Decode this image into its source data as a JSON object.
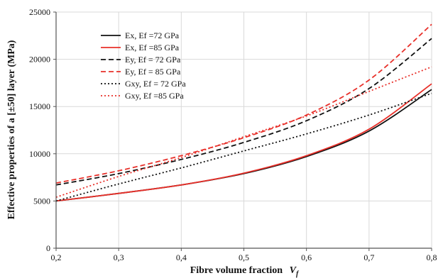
{
  "chart_data": {
    "type": "line",
    "xlabel": "Fibre volume fraction",
    "xlabel_symbol": "V",
    "xlabel_subscript": "f",
    "ylabel": "Effective properties of a [±50] layer (MPa)",
    "xlim": [
      0.2,
      0.8
    ],
    "ylim": [
      0,
      25000
    ],
    "x_ticks": [
      0.2,
      0.3,
      0.4,
      0.5,
      0.6,
      0.7,
      0.8
    ],
    "x_tick_labels": [
      "0,2",
      "0,3",
      "0,4",
      "0,5",
      "0,6",
      "0,7",
      "0,8"
    ],
    "y_ticks": [
      0,
      5000,
      10000,
      15000,
      20000,
      25000
    ],
    "y_tick_labels": [
      "0",
      "5000",
      "10000",
      "15000",
      "20000",
      "25000"
    ],
    "grid": true,
    "legend_position": "top-left",
    "x": [
      0.2,
      0.3,
      0.4,
      0.5,
      0.6,
      0.7,
      0.8
    ],
    "series": [
      {
        "name": "Ex, Ef =72 GPa",
        "color": "#111111",
        "dash": "solid",
        "values": [
          5000,
          5800,
          6700,
          7900,
          9700,
          12400,
          16800
        ]
      },
      {
        "name": "Ex, Ef =85 GPa",
        "color": "#e8302a",
        "dash": "solid",
        "values": [
          5000,
          5800,
          6700,
          7950,
          9800,
          12600,
          17400
        ]
      },
      {
        "name": "Ey, Ef = 72 GPa",
        "color": "#111111",
        "dash": "dashed",
        "values": [
          6700,
          7900,
          9400,
          11200,
          13500,
          16900,
          22200
        ]
      },
      {
        "name": "Ey, Ef = 85 GPa",
        "color": "#e8302a",
        "dash": "dashed",
        "values": [
          6900,
          8200,
          9800,
          11700,
          14100,
          17800,
          23700
        ]
      },
      {
        "name": "Gxy, Ef = 72 GPa",
        "color": "#111111",
        "dash": "dotted",
        "values": [
          5000,
          6800,
          8500,
          10300,
          12100,
          14100,
          16400
        ]
      },
      {
        "name": "Gxy, Ef =85 GPa",
        "color": "#e8302a",
        "dash": "dotted",
        "values": [
          5400,
          7600,
          9600,
          11800,
          14000,
          16600,
          19200
        ]
      }
    ]
  }
}
